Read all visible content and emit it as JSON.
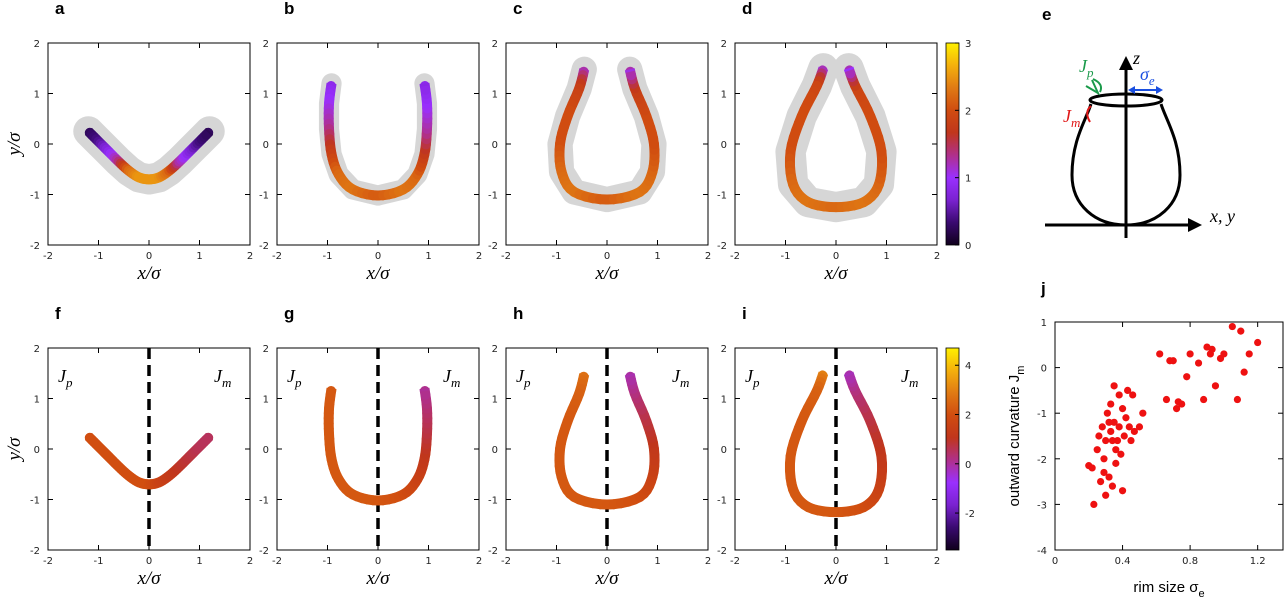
{
  "chart_data": [
    {
      "type": "curve",
      "label": "a",
      "xlabel": "x/σ",
      "ylabel": "y/σ",
      "xlim": [
        -2,
        2
      ],
      "ylim": [
        -2,
        2
      ],
      "xticks": [
        -2,
        -1,
        0,
        1,
        2
      ],
      "yticks": [
        -2,
        -1,
        0,
        1,
        2
      ],
      "clim": [
        0,
        3
      ],
      "colormap": [
        "#10001c",
        "#3a0a70",
        "#7a22d0",
        "#9a30ff",
        "#b0308a",
        "#c0361c",
        "#d04c10",
        "#e07a14",
        "#f4b00c",
        "#fff000"
      ],
      "spread": 0.3,
      "x": [
        -1.2,
        -1.0,
        -0.8,
        -0.6,
        -0.4,
        -0.2,
        0,
        0.2,
        0.4,
        0.6,
        0.8,
        1.0,
        1.2
      ],
      "y": [
        0.25,
        0.05,
        -0.15,
        -0.35,
        -0.53,
        -0.66,
        -0.7,
        -0.66,
        -0.53,
        -0.35,
        -0.15,
        0.05,
        0.25
      ],
      "color_values": [
        0.2,
        0.4,
        0.8,
        1.3,
        2.2,
        2.5,
        2.5,
        2.5,
        2.2,
        1.3,
        0.8,
        0.4,
        0.2
      ]
    },
    {
      "type": "curve",
      "label": "b",
      "xlabel": "x/σ",
      "xlim": [
        -2,
        2
      ],
      "ylim": [
        -2,
        2
      ],
      "xticks": [
        -2,
        -1,
        0,
        1,
        2
      ],
      "yticks": [
        -2,
        -1,
        0,
        1,
        2
      ],
      "clim": [
        0,
        3
      ],
      "colormap": [
        "#10001c",
        "#3a0a70",
        "#7a22d0",
        "#9a30ff",
        "#b0308a",
        "#c0361c",
        "#d04c10",
        "#e07a14",
        "#f4b00c",
        "#fff000"
      ],
      "spread": 0.2,
      "x": [
        -0.92,
        -0.97,
        -0.97,
        -0.92,
        -0.78,
        -0.5,
        0,
        0.5,
        0.78,
        0.92,
        0.97,
        0.97,
        0.92
      ],
      "y": [
        1.2,
        0.8,
        0.3,
        -0.2,
        -0.6,
        -0.9,
        -1.02,
        -0.9,
        -0.6,
        -0.2,
        0.3,
        0.8,
        1.2
      ],
      "color_values": [
        0.8,
        1.0,
        1.3,
        1.8,
        2.2,
        2.3,
        2.1,
        2.3,
        2.2,
        1.8,
        1.3,
        1.0,
        0.8
      ]
    },
    {
      "type": "curve",
      "label": "c",
      "xlabel": "x/σ",
      "xlim": [
        -2,
        2
      ],
      "ylim": [
        -2,
        2
      ],
      "xticks": [
        -2,
        -1,
        0,
        1,
        2
      ],
      "yticks": [
        -2,
        -1,
        0,
        1,
        2
      ],
      "clim": [
        0,
        3
      ],
      "colormap": [
        "#10001c",
        "#3a0a70",
        "#7a22d0",
        "#9a30ff",
        "#b0308a",
        "#c0361c",
        "#d04c10",
        "#e07a14",
        "#f4b00c",
        "#fff000"
      ],
      "spread": 0.25,
      "x": [
        -0.45,
        -0.55,
        -0.78,
        -0.93,
        -0.9,
        -0.65,
        0,
        0.65,
        0.9,
        0.93,
        0.78,
        0.55,
        0.45
      ],
      "y": [
        1.48,
        1.1,
        0.55,
        0,
        -0.55,
        -0.95,
        -1.1,
        -0.95,
        -0.55,
        0,
        0.55,
        1.1,
        1.48
      ],
      "color_values": [
        1.0,
        1.8,
        2.0,
        2.0,
        2.2,
        2.3,
        2.1,
        2.3,
        2.2,
        2.0,
        2.0,
        1.8,
        1.0
      ]
    },
    {
      "type": "curve",
      "label": "d",
      "xlabel": "x/σ",
      "xlim": [
        -2,
        2
      ],
      "ylim": [
        -2,
        2
      ],
      "xticks": [
        -2,
        -1,
        0,
        1,
        2
      ],
      "yticks": [
        -2,
        -1,
        0,
        1,
        2
      ],
      "clim": [
        0,
        3
      ],
      "colormap": [
        "#10001c",
        "#3a0a70",
        "#7a22d0",
        "#9a30ff",
        "#b0308a",
        "#c0361c",
        "#d04c10",
        "#e07a14",
        "#f4b00c",
        "#fff000"
      ],
      "spread": 0.3,
      "colorbar_ticks": [
        0,
        1,
        2,
        3
      ],
      "x": [
        -0.25,
        -0.38,
        -0.68,
        -0.9,
        -0.85,
        -0.55,
        0,
        0.55,
        0.85,
        0.9,
        0.68,
        0.38,
        0.25
      ],
      "y": [
        1.5,
        1.15,
        0.55,
        -0.15,
        -0.8,
        -1.15,
        -1.25,
        -1.15,
        -0.8,
        -0.15,
        0.55,
        1.15,
        1.5
      ],
      "color_values": [
        0.9,
        1.9,
        2.0,
        2.0,
        2.2,
        2.3,
        2.2,
        2.3,
        2.2,
        2.0,
        2.0,
        1.9,
        0.9
      ]
    },
    {
      "type": "curve",
      "label": "f",
      "xlabel": "x/σ",
      "ylabel": "y/σ",
      "xlim": [
        -2,
        2
      ],
      "ylim": [
        -2,
        2
      ],
      "xticks": [
        -2,
        -1,
        0,
        1,
        2
      ],
      "yticks": [
        -2,
        -1,
        0,
        1,
        2
      ],
      "clim": [
        -3.5,
        4.7
      ],
      "colormap": [
        "#10001c",
        "#3a0a70",
        "#7a22d0",
        "#9a30ff",
        "#b0308a",
        "#c0361c",
        "#d04c10",
        "#e07a14",
        "#f4b00c",
        "#fff000"
      ],
      "vline": 0,
      "left_text": {
        "main": "J",
        "sub": "p"
      },
      "right_text": {
        "main": "J",
        "sub": "m"
      },
      "x": [
        -1.2,
        -1.0,
        -0.8,
        -0.6,
        -0.4,
        -0.2,
        0,
        0.2,
        0.4,
        0.6,
        0.8,
        1.0,
        1.2
      ],
      "y": [
        0.25,
        0.05,
        -0.15,
        -0.35,
        -0.53,
        -0.66,
        -0.7,
        -0.66,
        -0.53,
        -0.35,
        -0.15,
        0.05,
        0.25
      ],
      "color_values": [
        2.0,
        2.0,
        2.0,
        2.0,
        2.0,
        2.0,
        2.0,
        1.6,
        1.3,
        1.0,
        0.8,
        0.6,
        0.5
      ]
    },
    {
      "type": "curve",
      "label": "g",
      "xlabel": "x/σ",
      "xlim": [
        -2,
        2
      ],
      "ylim": [
        -2,
        2
      ],
      "xticks": [
        -2,
        -1,
        0,
        1,
        2
      ],
      "yticks": [
        -2,
        -1,
        0,
        1,
        2
      ],
      "clim": [
        -3.5,
        4.7
      ],
      "colormap": [
        "#10001c",
        "#3a0a70",
        "#7a22d0",
        "#9a30ff",
        "#b0308a",
        "#c0361c",
        "#d04c10",
        "#e07a14",
        "#f4b00c",
        "#fff000"
      ],
      "vline": 0,
      "left_text": {
        "main": "J",
        "sub": "p"
      },
      "right_text": {
        "main": "J",
        "sub": "m"
      },
      "x": [
        -0.92,
        -0.97,
        -0.97,
        -0.92,
        -0.78,
        -0.5,
        0,
        0.5,
        0.78,
        0.92,
        0.97,
        0.97,
        0.92
      ],
      "y": [
        1.2,
        0.8,
        0.3,
        -0.2,
        -0.6,
        -0.9,
        -1.02,
        -0.9,
        -0.6,
        -0.2,
        0.3,
        0.8,
        1.2
      ],
      "color_values": [
        2.2,
        2.2,
        2.2,
        2.2,
        2.2,
        2.2,
        2.2,
        2.0,
        1.6,
        1.2,
        0.8,
        0.4,
        0.0
      ]
    },
    {
      "type": "curve",
      "label": "h",
      "xlabel": "x/σ",
      "xlim": [
        -2,
        2
      ],
      "ylim": [
        -2,
        2
      ],
      "xticks": [
        -2,
        -1,
        0,
        1,
        2
      ],
      "yticks": [
        -2,
        -1,
        0,
        1,
        2
      ],
      "clim": [
        -3.5,
        4.7
      ],
      "colormap": [
        "#10001c",
        "#3a0a70",
        "#7a22d0",
        "#9a30ff",
        "#b0308a",
        "#c0361c",
        "#d04c10",
        "#e07a14",
        "#f4b00c",
        "#fff000"
      ],
      "vline": 0,
      "left_text": {
        "main": "J",
        "sub": "p"
      },
      "right_text": {
        "main": "J",
        "sub": "m"
      },
      "x": [
        -0.45,
        -0.55,
        -0.78,
        -0.93,
        -0.9,
        -0.65,
        0,
        0.65,
        0.9,
        0.93,
        0.78,
        0.55,
        0.45
      ],
      "y": [
        1.48,
        1.1,
        0.55,
        0,
        -0.55,
        -0.95,
        -1.1,
        -0.95,
        -0.55,
        0,
        0.55,
        1.1,
        1.48
      ],
      "color_values": [
        2.8,
        2.4,
        2.2,
        2.2,
        2.2,
        2.2,
        2.2,
        2.0,
        1.6,
        1.2,
        0.8,
        0.3,
        -0.2
      ]
    },
    {
      "type": "curve",
      "label": "i",
      "xlabel": "x/σ",
      "xlim": [
        -2,
        2
      ],
      "ylim": [
        -2,
        2
      ],
      "xticks": [
        -2,
        -1,
        0,
        1,
        2
      ],
      "yticks": [
        -2,
        -1,
        0,
        1,
        2
      ],
      "clim": [
        -3.5,
        4.7
      ],
      "colormap": [
        "#10001c",
        "#3a0a70",
        "#7a22d0",
        "#9a30ff",
        "#b0308a",
        "#c0361c",
        "#d04c10",
        "#e07a14",
        "#f4b00c",
        "#fff000"
      ],
      "vline": 0,
      "left_text": {
        "main": "J",
        "sub": "p"
      },
      "right_text": {
        "main": "J",
        "sub": "m"
      },
      "colorbar_ticks": [
        -2,
        0,
        2,
        4
      ],
      "x": [
        -0.25,
        -0.38,
        -0.68,
        -0.9,
        -0.85,
        -0.55,
        0,
        0.55,
        0.85,
        0.9,
        0.68,
        0.38,
        0.25
      ],
      "y": [
        1.5,
        1.15,
        0.55,
        -0.15,
        -0.8,
        -1.15,
        -1.25,
        -1.15,
        -0.8,
        -0.15,
        0.55,
        1.15,
        1.5
      ],
      "color_values": [
        3.2,
        2.4,
        2.2,
        2.2,
        2.2,
        2.2,
        2.2,
        2.0,
        1.6,
        1.2,
        0.8,
        0.3,
        -0.3
      ]
    },
    {
      "type": "scatter",
      "label": "j",
      "xlabel": {
        "main": "rim size σ",
        "sub": "e"
      },
      "ylabel": {
        "main": "outward curvature J",
        "sub": "m"
      },
      "xlim": [
        0,
        1.35
      ],
      "ylim": [
        -4,
        1
      ],
      "xticks": [
        0,
        0.4,
        0.8,
        1.2
      ],
      "yticks": [
        -4,
        -3,
        -2,
        -1,
        0,
        1
      ],
      "color": "#ee1111",
      "x": [
        0.62,
        0.68,
        0.7,
        0.66,
        0.72,
        0.75,
        0.78,
        0.8,
        0.85,
        0.88,
        0.9,
        0.92,
        0.95,
        0.98,
        1.0,
        1.05,
        1.08,
        1.1,
        1.12,
        1.15,
        1.2,
        0.73,
        0.93,
        0.2,
        0.22,
        0.23,
        0.25,
        0.26,
        0.27,
        0.28,
        0.29,
        0.3,
        0.3,
        0.31,
        0.32,
        0.33,
        0.33,
        0.34,
        0.35,
        0.35,
        0.36,
        0.37,
        0.38,
        0.38,
        0.39,
        0.4,
        0.4,
        0.41,
        0.42,
        0.43,
        0.44,
        0.45,
        0.46,
        0.47,
        0.5,
        0.52,
        0.36,
        0.32,
        0.29,
        0.34
      ],
      "y": [
        0.3,
        0.15,
        0.15,
        -0.7,
        -0.9,
        -0.8,
        -0.2,
        0.3,
        0.1,
        -0.7,
        0.45,
        0.3,
        -0.4,
        0.2,
        0.3,
        0.9,
        -0.7,
        0.8,
        -0.1,
        0.3,
        0.55,
        -0.75,
        0.4,
        -2.15,
        -2.2,
        -3.0,
        -1.8,
        -1.5,
        -2.5,
        -1.3,
        -2.0,
        -1.6,
        -2.8,
        -1.0,
        -2.4,
        -0.8,
        -1.4,
        -2.6,
        -0.4,
        -1.2,
        -2.1,
        -1.6,
        -0.6,
        -1.3,
        -1.9,
        -0.9,
        -2.7,
        -1.5,
        -1.1,
        -0.5,
        -1.3,
        -1.6,
        -0.6,
        -1.4,
        -1.3,
        -1.0,
        -1.8,
        -1.2,
        -2.3,
        -1.6
      ]
    }
  ],
  "diagram": {
    "label": "e",
    "z_label": "z",
    "xy_label": "x, y",
    "jp": {
      "main": "J",
      "sub": "p"
    },
    "sigma": {
      "main": "σ",
      "sub": "e"
    },
    "jm": {
      "main": "J",
      "sub": "m"
    }
  }
}
